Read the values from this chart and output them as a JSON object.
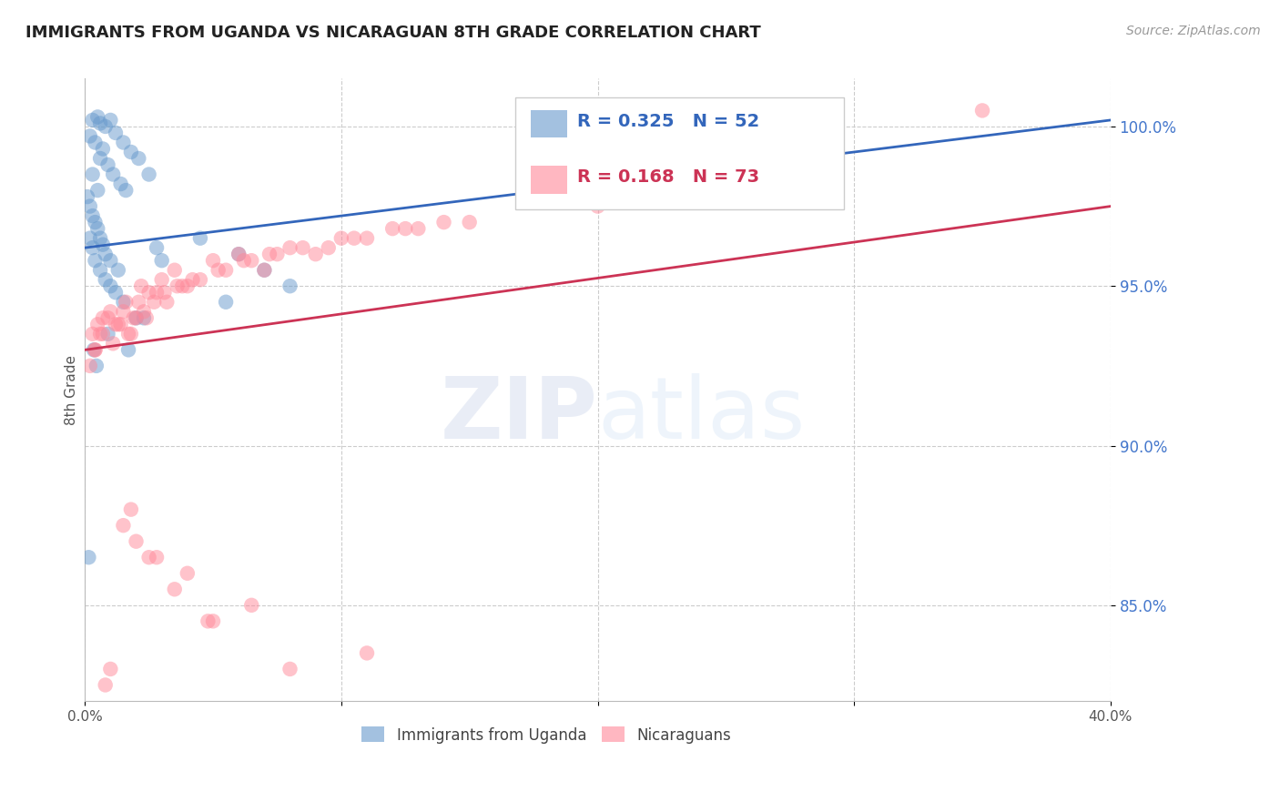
{
  "title": "IMMIGRANTS FROM UGANDA VS NICARAGUAN 8TH GRADE CORRELATION CHART",
  "source": "Source: ZipAtlas.com",
  "ylabel": "8th Grade",
  "x_min": 0.0,
  "x_max": 40.0,
  "y_min": 82.0,
  "y_max": 101.5,
  "yticks": [
    85.0,
    90.0,
    95.0,
    100.0
  ],
  "ytick_labels": [
    "85.0%",
    "90.0%",
    "95.0%",
    "100.0%"
  ],
  "xticks": [
    0.0,
    10.0,
    20.0,
    30.0,
    40.0
  ],
  "xtick_labels": [
    "0.0%",
    "",
    "",
    "",
    "40.0%"
  ],
  "blue_color": "#6699CC",
  "pink_color": "#FF8899",
  "trendline_blue": "#3366BB",
  "trendline_pink": "#CC3355",
  "blue_R": 0.325,
  "blue_N": 52,
  "pink_R": 0.168,
  "pink_N": 73,
  "legend_label_blue": "Immigrants from Uganda",
  "legend_label_pink": "Nicaraguans",
  "watermark_zip": "ZIP",
  "watermark_atlas": "atlas",
  "blue_scatter_x": [
    0.3,
    0.5,
    0.6,
    0.8,
    1.0,
    1.2,
    1.5,
    1.8,
    2.1,
    2.5,
    0.2,
    0.4,
    0.6,
    0.7,
    0.9,
    1.1,
    1.4,
    1.6,
    0.3,
    0.5,
    0.1,
    0.2,
    0.3,
    0.4,
    0.5,
    0.6,
    0.7,
    0.8,
    1.0,
    1.3,
    0.2,
    0.3,
    0.4,
    0.6,
    0.8,
    1.0,
    1.2,
    1.5,
    2.0,
    3.0,
    4.5,
    6.0,
    8.0,
    5.5,
    7.0,
    0.9,
    1.7,
    2.3,
    0.35,
    0.45,
    2.8,
    0.15
  ],
  "blue_scatter_y": [
    100.2,
    100.3,
    100.1,
    100.0,
    100.2,
    99.8,
    99.5,
    99.2,
    99.0,
    98.5,
    99.7,
    99.5,
    99.0,
    99.3,
    98.8,
    98.5,
    98.2,
    98.0,
    98.5,
    98.0,
    97.8,
    97.5,
    97.2,
    97.0,
    96.8,
    96.5,
    96.3,
    96.0,
    95.8,
    95.5,
    96.5,
    96.2,
    95.8,
    95.5,
    95.2,
    95.0,
    94.8,
    94.5,
    94.0,
    95.8,
    96.5,
    96.0,
    95.0,
    94.5,
    95.5,
    93.5,
    93.0,
    94.0,
    93.0,
    92.5,
    96.2,
    86.5
  ],
  "pink_scatter_x": [
    0.3,
    0.5,
    0.7,
    1.0,
    1.3,
    1.6,
    1.9,
    2.2,
    2.5,
    3.0,
    3.5,
    4.0,
    5.0,
    6.0,
    7.0,
    8.0,
    9.0,
    10.0,
    12.0,
    14.0,
    0.4,
    0.6,
    0.9,
    1.2,
    1.5,
    1.8,
    2.1,
    2.4,
    2.8,
    3.2,
    3.8,
    4.5,
    5.5,
    6.5,
    7.5,
    9.5,
    11.0,
    13.0,
    15.0,
    20.0,
    0.2,
    0.4,
    0.7,
    1.1,
    1.4,
    1.7,
    2.0,
    2.3,
    2.7,
    3.1,
    3.6,
    4.2,
    5.2,
    6.2,
    7.2,
    8.5,
    10.5,
    12.5,
    5.0,
    1.5,
    2.0,
    2.8,
    4.0,
    0.8,
    1.0,
    1.8,
    2.5,
    3.5,
    4.8,
    6.5,
    8.0,
    11.0,
    35.0
  ],
  "pink_scatter_y": [
    93.5,
    93.8,
    94.0,
    94.2,
    93.8,
    94.5,
    94.0,
    95.0,
    94.8,
    95.2,
    95.5,
    95.0,
    95.8,
    96.0,
    95.5,
    96.2,
    96.0,
    96.5,
    96.8,
    97.0,
    93.0,
    93.5,
    94.0,
    93.8,
    94.2,
    93.5,
    94.5,
    94.0,
    94.8,
    94.5,
    95.0,
    95.2,
    95.5,
    95.8,
    96.0,
    96.2,
    96.5,
    96.8,
    97.0,
    97.5,
    92.5,
    93.0,
    93.5,
    93.2,
    93.8,
    93.5,
    94.0,
    94.2,
    94.5,
    94.8,
    95.0,
    95.2,
    95.5,
    95.8,
    96.0,
    96.2,
    96.5,
    96.8,
    84.5,
    87.5,
    87.0,
    86.5,
    86.0,
    82.5,
    83.0,
    88.0,
    86.5,
    85.5,
    84.5,
    85.0,
    83.0,
    83.5,
    100.5
  ]
}
